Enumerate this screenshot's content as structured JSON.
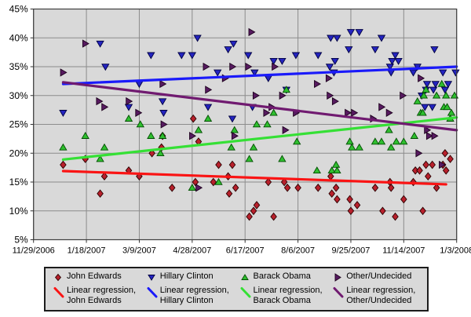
{
  "chart_data": {
    "type": "scatter",
    "title": "",
    "grid": true,
    "legend_position": "bottom",
    "plot_bg": "#d9d9d9",
    "grid_color": "#8c8c8c",
    "border_color": "#3f3f3f",
    "x_axis": {
      "start": "11/29/2006",
      "end": "1/3/2008",
      "labels": [
        "11/29/2006",
        "1/18/2007",
        "3/9/2007",
        "4/28/2007",
        "6/17/2007",
        "8/6/2007",
        "9/25/2007",
        "11/14/2007",
        "1/3/2008"
      ]
    },
    "y_axis": {
      "min": 5,
      "max": 45,
      "step": 5,
      "tick_labels": [
        "45%",
        "40%",
        "35%",
        "30%",
        "25%",
        "20%",
        "15%",
        "10%",
        "5%"
      ]
    },
    "series": [
      {
        "name": "John Edwards",
        "marker": "diamond",
        "marker_color": "#b8202c",
        "marker_stroke": "#2a0000",
        "points": [
          [
            "12/27/2006",
            18
          ],
          [
            "1/17/2007",
            19
          ],
          [
            "1/31/2007",
            13
          ],
          [
            "2/4/2007",
            16
          ],
          [
            "2/27/2007",
            17
          ],
          [
            "3/9/2007",
            16
          ],
          [
            "3/21/2007",
            20
          ],
          [
            "3/30/2007",
            21
          ],
          [
            "3/31/2007",
            23
          ],
          [
            "4/9/2007",
            14
          ],
          [
            "4/29/2007",
            26
          ],
          [
            "5/1/2007",
            15
          ],
          [
            "5/4/2007",
            22
          ],
          [
            "5/18/2007",
            15
          ],
          [
            "5/23/2007",
            18
          ],
          [
            "6/1/2007",
            16
          ],
          [
            "6/2/2007",
            13
          ],
          [
            "6/5/2007",
            18
          ],
          [
            "6/8/2007",
            14
          ],
          [
            "6/21/2007",
            9
          ],
          [
            "6/25/2007",
            10
          ],
          [
            "6/28/2007",
            11
          ],
          [
            "7/9/2007",
            15
          ],
          [
            "7/14/2007",
            9
          ],
          [
            "7/24/2007",
            15
          ],
          [
            "7/27/2007",
            14
          ],
          [
            "8/6/2007",
            14
          ],
          [
            "8/25/2007",
            14
          ],
          [
            "9/6/2007",
            16
          ],
          [
            "9/7/2007",
            13
          ],
          [
            "9/11/2007",
            14
          ],
          [
            "9/12/2007",
            12
          ],
          [
            "9/24/2007",
            12
          ],
          [
            "9/25/2007",
            10
          ],
          [
            "10/1/2007",
            11
          ],
          [
            "10/18/2007",
            14
          ],
          [
            "10/25/2007",
            10
          ],
          [
            "11/1/2007",
            15
          ],
          [
            "11/2/2007",
            14
          ],
          [
            "11/6/2007",
            9
          ],
          [
            "11/14/2007",
            12
          ],
          [
            "11/23/2007",
            15
          ],
          [
            "11/25/2007",
            17
          ],
          [
            "11/29/2007",
            17
          ],
          [
            "12/2/2007",
            10
          ],
          [
            "12/5/2007",
            18
          ],
          [
            "12/7/2007",
            16
          ],
          [
            "12/11/2007",
            18
          ],
          [
            "12/15/2007",
            14
          ],
          [
            "12/21/2007",
            18
          ],
          [
            "12/23/2007",
            20
          ],
          [
            "12/24/2007",
            17
          ],
          [
            "12/28/2007",
            19
          ]
        ]
      },
      {
        "name": "Hillary Clinton",
        "marker": "triangle-down",
        "marker_color": "#2424c0",
        "marker_stroke": "#000040",
        "points": [
          [
            "12/27/2006",
            27
          ],
          [
            "1/31/2007",
            39
          ],
          [
            "2/5/2007",
            35
          ],
          [
            "2/27/2007",
            28
          ],
          [
            "3/9/2007",
            32
          ],
          [
            "3/20/2007",
            37
          ],
          [
            "3/31/2007",
            29
          ],
          [
            "4/1/2007",
            27
          ],
          [
            "4/18/2007",
            37
          ],
          [
            "4/28/2007",
            37
          ],
          [
            "5/3/2007",
            40
          ],
          [
            "5/13/2007",
            28
          ],
          [
            "5/22/2007",
            34
          ],
          [
            "6/1/2007",
            38
          ],
          [
            "6/5/2007",
            26
          ],
          [
            "6/6/2007",
            39
          ],
          [
            "6/20/2007",
            37
          ],
          [
            "6/24/2007",
            28
          ],
          [
            "6/26/2007",
            34
          ],
          [
            "7/9/2007",
            33
          ],
          [
            "7/14/2007",
            36
          ],
          [
            "7/22/2007",
            36
          ],
          [
            "7/26/2007",
            31
          ],
          [
            "8/4/2007",
            37
          ],
          [
            "8/25/2007",
            37
          ],
          [
            "9/5/2007",
            35
          ],
          [
            "9/6/2007",
            40
          ],
          [
            "9/9/2007",
            34
          ],
          [
            "9/10/2007",
            36
          ],
          [
            "9/12/2007",
            40
          ],
          [
            "9/23/2007",
            38
          ],
          [
            "9/25/2007",
            41
          ],
          [
            "10/3/2007",
            41
          ],
          [
            "10/18/2007",
            38
          ],
          [
            "10/24/2007",
            40
          ],
          [
            "11/1/2007",
            35
          ],
          [
            "11/2/2007",
            34
          ],
          [
            "11/3/2007",
            36
          ],
          [
            "11/6/2007",
            37
          ],
          [
            "11/9/2007",
            36
          ],
          [
            "11/23/2007",
            34
          ],
          [
            "11/27/2007",
            35
          ],
          [
            "12/1/2007",
            30
          ],
          [
            "12/4/2007",
            28
          ],
          [
            "12/5/2007",
            31
          ],
          [
            "12/6/2007",
            32
          ],
          [
            "12/11/2007",
            28
          ],
          [
            "12/12/2007",
            31
          ],
          [
            "12/13/2007",
            38
          ],
          [
            "12/14/2007",
            32
          ],
          [
            "12/21/2007",
            34
          ],
          [
            "12/23/2007",
            31
          ],
          [
            "12/26/2007",
            32
          ],
          [
            "1/2/2008",
            34
          ]
        ]
      },
      {
        "name": "Barack Obama",
        "marker": "triangle-up",
        "marker_color": "#2fbf2f",
        "marker_stroke": "#004d00",
        "points": [
          [
            "12/27/2006",
            21
          ],
          [
            "1/17/2007",
            23
          ],
          [
            "1/31/2007",
            19
          ],
          [
            "2/4/2007",
            21
          ],
          [
            "2/27/2007",
            26
          ],
          [
            "3/10/2007",
            25
          ],
          [
            "3/20/2007",
            23
          ],
          [
            "3/29/2007",
            20
          ],
          [
            "3/31/2007",
            23
          ],
          [
            "4/28/2007",
            14
          ],
          [
            "5/4/2007",
            24
          ],
          [
            "5/13/2007",
            26
          ],
          [
            "5/23/2007",
            15
          ],
          [
            "6/4/2007",
            21
          ],
          [
            "6/7/2007",
            24
          ],
          [
            "6/21/2007",
            19
          ],
          [
            "6/25/2007",
            21
          ],
          [
            "6/28/2007",
            25
          ],
          [
            "7/8/2007",
            25
          ],
          [
            "7/14/2007",
            27
          ],
          [
            "7/22/2007",
            19
          ],
          [
            "7/26/2007",
            31
          ],
          [
            "8/5/2007",
            22
          ],
          [
            "8/24/2007",
            17
          ],
          [
            "9/7/2007",
            17
          ],
          [
            "9/11/2007",
            18
          ],
          [
            "9/12/2007",
            17
          ],
          [
            "9/24/2007",
            22
          ],
          [
            "9/26/2007",
            21
          ],
          [
            "10/3/2007",
            21
          ],
          [
            "10/18/2007",
            22
          ],
          [
            "10/24/2007",
            22
          ],
          [
            "10/31/2007",
            24
          ],
          [
            "11/2/2007",
            21
          ],
          [
            "11/7/2007",
            22
          ],
          [
            "11/14/2007",
            22
          ],
          [
            "11/24/2007",
            23
          ],
          [
            "11/27/2007",
            29
          ],
          [
            "11/30/2007",
            27
          ],
          [
            "12/2/2007",
            27
          ],
          [
            "12/3/2007",
            30
          ],
          [
            "12/5/2007",
            31
          ],
          [
            "12/15/2007",
            30
          ],
          [
            "12/20/2007",
            32
          ],
          [
            "12/22/2007",
            28
          ],
          [
            "12/24/2007",
            30
          ],
          [
            "12/25/2007",
            28
          ],
          [
            "12/28/2007",
            26
          ],
          [
            "12/29/2007",
            27
          ],
          [
            "1/1/2008",
            30
          ]
        ]
      },
      {
        "name": "Other/Undecided",
        "marker": "triangle-right",
        "marker_color": "#571a60",
        "marker_stroke": "#1d001d",
        "points": [
          [
            "12/27/2006",
            34
          ],
          [
            "1/17/2007",
            39
          ],
          [
            "1/30/2007",
            29
          ],
          [
            "2/4/2007",
            28
          ],
          [
            "2/27/2007",
            29
          ],
          [
            "3/8/2007",
            27
          ],
          [
            "3/31/2007",
            32
          ],
          [
            "4/1/2007",
            25
          ],
          [
            "4/28/2007",
            23
          ],
          [
            "5/4/2007",
            14
          ],
          [
            "5/11/2007",
            35
          ],
          [
            "5/13/2007",
            31
          ],
          [
            "5/29/2007",
            33
          ],
          [
            "6/5/2007",
            35
          ],
          [
            "6/7/2007",
            23
          ],
          [
            "6/20/2007",
            35
          ],
          [
            "6/23/2007",
            41
          ],
          [
            "6/27/2007",
            30
          ],
          [
            "7/7/2007",
            27
          ],
          [
            "7/12/2007",
            28
          ],
          [
            "7/15/2007",
            35
          ],
          [
            "7/22/2007",
            30
          ],
          [
            "7/25/2007",
            24
          ],
          [
            "8/4/2007",
            27
          ],
          [
            "8/24/2007",
            32
          ],
          [
            "9/4/2007",
            33
          ],
          [
            "9/5/2007",
            30
          ],
          [
            "9/10/2007",
            29
          ],
          [
            "9/22/2007",
            27
          ],
          [
            "9/28/2007",
            27
          ],
          [
            "10/16/2007",
            26
          ],
          [
            "10/24/2007",
            28
          ],
          [
            "10/31/2007",
            27
          ],
          [
            "11/13/2007",
            30
          ],
          [
            "11/28/2007",
            20
          ],
          [
            "11/30/2007",
            33
          ],
          [
            "12/6/2007",
            24
          ],
          [
            "12/8/2007",
            23
          ],
          [
            "12/13/2007",
            23
          ],
          [
            "12/20/2007",
            18
          ]
        ]
      }
    ],
    "regressions": [
      {
        "name": "Linear regression, John Edwards",
        "color": "#fa1414",
        "start": [
          "12/27/2006",
          16.9
        ],
        "end": [
          "12/24/2007",
          14.6
        ]
      },
      {
        "name": "Linear regression, Hillary Clinton",
        "color": "#1a1afa",
        "start": [
          "12/27/2006",
          32.0
        ],
        "end": [
          "1/3/2008",
          35.0
        ]
      },
      {
        "name": "Linear regression, Barack Obama",
        "color": "#35e035",
        "start": [
          "12/27/2006",
          18.9
        ],
        "end": [
          "1/3/2008",
          26.2
        ]
      },
      {
        "name": "Linear regression, Other/Undecided",
        "color": "#701a70",
        "start": [
          "12/27/2006",
          32.3
        ],
        "end": [
          "1/3/2008",
          24.0
        ]
      }
    ],
    "legend": {
      "entries": [
        {
          "marker_label": "John Edwards",
          "regression_line_1": "Linear regression,",
          "regression_line_2": "John Edwards"
        },
        {
          "marker_label": "Hillary Clinton",
          "regression_line_1": "Linear regression,",
          "regression_line_2": "Hillary Clinton"
        },
        {
          "marker_label": "Barack Obama",
          "regression_line_1": "Linear regression,",
          "regression_line_2": "Barack Obama"
        },
        {
          "marker_label": "Other/Undecided",
          "regression_line_1": "Linear regression,",
          "regression_line_2": "Other/Undecided"
        }
      ]
    }
  }
}
